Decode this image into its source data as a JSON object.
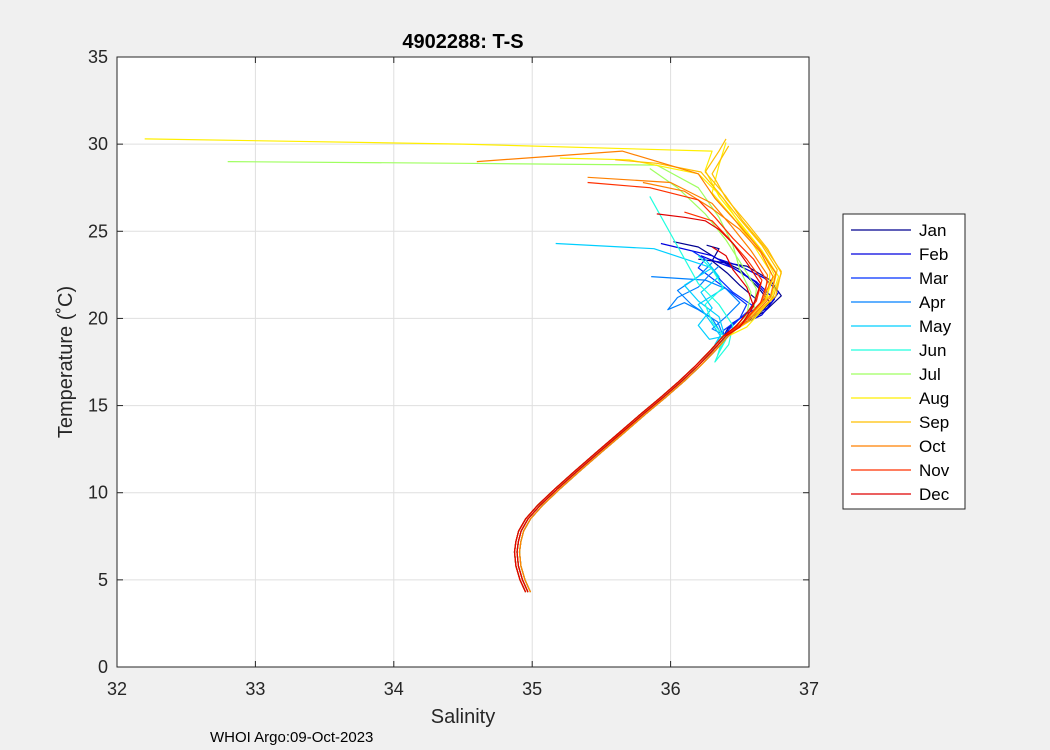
{
  "colors": {
    "figure_bg": "#f0f0f0",
    "axes_bg": "#ffffff",
    "grid": "#dfdfdf",
    "axis": "#262626"
  },
  "chart_data": {
    "type": "line",
    "title": "4902288:  T-S",
    "xlabel": "Salinity",
    "ylabel": "Temperature (˚C)",
    "xlim": [
      32,
      37
    ],
    "ylim": [
      0,
      35
    ],
    "xticks": [
      32,
      33,
      34,
      35,
      36,
      37
    ],
    "yticks": [
      0,
      5,
      10,
      15,
      20,
      25,
      30,
      35
    ],
    "grid": true,
    "legend_position": "outside-right",
    "footer": "WHOI Argo:09-Oct-2023",
    "base_curve": {
      "salinity": [
        34.97,
        34.93,
        34.9,
        34.89,
        34.9,
        34.92,
        34.97,
        35.06,
        35.18,
        35.32,
        35.48,
        35.64,
        35.8,
        35.95,
        36.08,
        36.2,
        36.31,
        36.4
      ],
      "temperature": [
        4.3,
        5.0,
        5.8,
        6.6,
        7.2,
        7.8,
        8.5,
        9.3,
        10.2,
        11.2,
        12.3,
        13.4,
        14.5,
        15.5,
        16.4,
        17.3,
        18.2,
        19.0
      ]
    },
    "series": [
      {
        "name": "Jan",
        "color": "#00008f",
        "profiles": [
          {
            "salinity": [
              36.42,
              36.55,
              36.62,
              36.5,
              36.41,
              36.3,
              36.35,
              36.26
            ],
            "temperature": [
              19.5,
              20.3,
              21.1,
              21.9,
              22.6,
              23.3,
              24.0,
              24.2
            ]
          },
          {
            "salinity": [
              36.46,
              36.62,
              36.72,
              36.63,
              36.5,
              36.32,
              36.2,
              36.02
            ],
            "temperature": [
              19.4,
              20.1,
              20.9,
              21.8,
              22.8,
              23.5,
              24.1,
              24.4
            ]
          },
          {
            "salinity": [
              36.5,
              36.68,
              36.8,
              36.72,
              36.55,
              36.3,
              36.2
            ],
            "temperature": [
              19.6,
              20.4,
              21.3,
              22.2,
              23.0,
              23.3,
              23.4
            ]
          }
        ]
      },
      {
        "name": "Feb",
        "color": "#0000df",
        "profiles": [
          {
            "salinity": [
              36.48,
              36.66,
              36.75,
              36.62,
              36.45,
              36.28,
              36.22
            ],
            "temperature": [
              19.5,
              20.2,
              21.1,
              22.1,
              22.9,
              23.4,
              23.6
            ]
          },
          {
            "salinity": [
              36.44,
              36.6,
              36.7,
              36.61,
              36.45,
              36.3,
              35.93
            ],
            "temperature": [
              19.7,
              20.5,
              21.3,
              22.1,
              22.9,
              23.6,
              24.3
            ]
          },
          {
            "salinity": [
              36.52,
              36.7,
              36.78,
              36.68,
              36.5,
              36.35
            ],
            "temperature": [
              19.8,
              20.6,
              21.5,
              22.3,
              23.0,
              23.4
            ]
          }
        ]
      },
      {
        "name": "Mar",
        "color": "#0030ff",
        "profiles": [
          {
            "salinity": [
              36.38,
              36.5,
              36.55,
              36.42,
              36.3,
              36.2,
              36.25,
              36.15
            ],
            "temperature": [
              19.3,
              20.0,
              20.8,
              21.6,
              22.3,
              22.9,
              23.4,
              23.9
            ]
          },
          {
            "salinity": [
              36.4,
              36.5,
              36.6,
              36.45,
              36.36,
              36.3
            ],
            "temperature": [
              19.2,
              20.0,
              20.7,
              21.5,
              22.2,
              22.9
            ]
          }
        ]
      },
      {
        "name": "Apr",
        "color": "#0080ff",
        "profiles": [
          {
            "salinity": [
              36.38,
              36.34,
              36.2,
              36.1,
              35.98,
              36.05,
              36.2,
              36.28,
              36.35
            ],
            "temperature": [
              19.0,
              19.8,
              20.5,
              20.9,
              20.5,
              21.2,
              21.8,
              22.5,
              23.0
            ]
          },
          {
            "salinity": [
              36.3,
              36.4,
              36.5,
              36.4,
              36.25,
              35.86
            ],
            "temperature": [
              19.4,
              20.1,
              20.9,
              21.7,
              22.2,
              22.4
            ]
          },
          {
            "salinity": [
              36.36,
              36.3,
              36.15,
              36.05,
              36.2,
              36.3
            ],
            "temperature": [
              19.2,
              20.0,
              20.8,
              21.6,
              22.4,
              23.2
            ]
          }
        ]
      },
      {
        "name": "May",
        "color": "#00cfff",
        "profiles": [
          {
            "salinity": [
              36.32,
              36.38,
              36.35,
              36.2,
              36.1,
              36.3,
              35.88,
              35.17
            ],
            "temperature": [
              18.5,
              19.3,
              20.1,
              21.0,
              21.9,
              22.9,
              24.0,
              24.3
            ]
          },
          {
            "salinity": [
              36.28,
              36.2,
              36.3,
              36.22,
              36.35,
              36.25
            ],
            "temperature": [
              18.8,
              19.6,
              20.6,
              21.5,
              22.4,
              23.4
            ]
          },
          {
            "salinity": [
              36.3,
              36.36,
              36.28,
              36.2,
              36.38,
              36.32
            ],
            "temperature": [
              18.2,
              19.0,
              19.9,
              20.8,
              21.7,
              22.7
            ]
          }
        ]
      },
      {
        "name": "Jun",
        "color": "#20ffdf",
        "profiles": [
          {
            "salinity": [
              36.34,
              36.4,
              36.3,
              36.25,
              36.38,
              36.3,
              36.2
            ],
            "temperature": [
              17.9,
              18.8,
              19.8,
              20.8,
              21.8,
              22.8,
              23.6
            ]
          },
          {
            "salinity": [
              36.32,
              36.42,
              36.45,
              36.35,
              36.2,
              35.85
            ],
            "temperature": [
              17.5,
              18.5,
              19.6,
              20.8,
              22.0,
              27.0
            ]
          }
        ]
      },
      {
        "name": "Jul",
        "color": "#9fff60",
        "profiles": [
          {
            "salinity": [
              36.4,
              36.55,
              36.58,
              36.5,
              36.45,
              36.35,
              36.2,
              35.9,
              34.5,
              32.8
            ],
            "temperature": [
              19.0,
              20.2,
              21.5,
              22.8,
              24.2,
              25.8,
              27.5,
              28.8,
              28.9,
              29.0
            ]
          },
          {
            "salinity": [
              36.45,
              36.6,
              36.62,
              36.52,
              36.4,
              36.25,
              36.05,
              35.85
            ],
            "temperature": [
              19.2,
              20.4,
              21.7,
              23.0,
              24.5,
              26.0,
              27.5,
              28.6
            ]
          }
        ]
      },
      {
        "name": "Aug",
        "color": "#ffef00",
        "profiles": [
          {
            "salinity": [
              36.5,
              36.68,
              36.75,
              36.65,
              36.5,
              36.35,
              36.25,
              36.3,
              34.5,
              32.2
            ],
            "temperature": [
              19.6,
              21.0,
              22.5,
              24.0,
              25.5,
              27.0,
              28.5,
              29.6,
              30.0,
              30.3
            ]
          },
          {
            "salinity": [
              36.52,
              36.7,
              36.72,
              36.6,
              36.45,
              36.3,
              36.35,
              36.4
            ],
            "temperature": [
              19.8,
              21.2,
              22.7,
              24.2,
              25.8,
              27.2,
              28.8,
              30.1
            ]
          },
          {
            "salinity": [
              36.55,
              36.72,
              36.78,
              36.66,
              36.5,
              36.38,
              36.2,
              35.7,
              35.2
            ],
            "temperature": [
              19.5,
              21.0,
              22.4,
              23.9,
              25.4,
              26.9,
              28.3,
              29.1,
              29.2
            ]
          }
        ]
      },
      {
        "name": "Sep",
        "color": "#ffbf00",
        "profiles": [
          {
            "salinity": [
              36.55,
              36.74,
              36.8,
              36.7,
              36.55,
              36.4,
              36.3,
              36.42
            ],
            "temperature": [
              19.8,
              21.2,
              22.6,
              24.0,
              25.5,
              26.9,
              28.3,
              29.9
            ]
          },
          {
            "salinity": [
              36.58,
              36.76,
              36.8,
              36.68,
              36.52,
              36.4,
              36.25,
              36.35,
              36.4
            ],
            "temperature": [
              19.9,
              21.3,
              22.7,
              24.1,
              25.6,
              27.0,
              28.4,
              29.6,
              30.3
            ]
          },
          {
            "salinity": [
              36.56,
              36.73,
              36.77,
              36.66,
              36.5,
              36.36,
              36.22,
              35.9,
              35.6
            ],
            "temperature": [
              20.0,
              21.4,
              22.8,
              24.2,
              25.7,
              27.1,
              28.4,
              28.9,
              29.1
            ]
          }
        ]
      },
      {
        "name": "Oct",
        "color": "#ff8000",
        "profiles": [
          {
            "salinity": [
              36.55,
              36.72,
              36.76,
              36.64,
              36.48,
              36.32,
              36.2,
              35.65,
              34.6
            ],
            "temperature": [
              19.8,
              21.2,
              22.6,
              24.0,
              25.5,
              26.9,
              28.3,
              29.6,
              29.0
            ]
          },
          {
            "salinity": [
              36.52,
              36.68,
              36.7,
              36.58,
              36.44,
              36.3,
              36.0,
              35.4
            ],
            "temperature": [
              19.8,
              21.1,
              22.5,
              23.9,
              25.3,
              26.6,
              27.8,
              28.1
            ]
          },
          {
            "salinity": [
              36.5,
              36.66,
              36.74,
              36.65,
              36.5,
              36.3,
              36.1,
              35.8
            ],
            "temperature": [
              19.6,
              21.0,
              22.4,
              23.8,
              25.1,
              26.3,
              27.3,
              27.8
            ]
          }
        ]
      },
      {
        "name": "Nov",
        "color": "#ff3000",
        "profiles": [
          {
            "salinity": [
              36.52,
              36.65,
              36.7,
              36.6,
              36.45,
              36.32,
              36.2,
              35.85,
              35.4
            ],
            "temperature": [
              19.7,
              20.9,
              22.1,
              23.4,
              24.6,
              25.8,
              26.8,
              27.5,
              27.8
            ]
          },
          {
            "salinity": [
              36.5,
              36.62,
              36.66,
              36.55,
              36.42,
              36.3,
              36.1
            ],
            "temperature": [
              19.8,
              21.0,
              22.2,
              23.4,
              24.6,
              25.6,
              26.1
            ]
          }
        ]
      },
      {
        "name": "Dec",
        "color": "#df0000",
        "profiles": [
          {
            "salinity": [
              36.48,
              36.6,
              36.65,
              36.55,
              36.45,
              36.35,
              36.25,
              36.1,
              35.9
            ],
            "temperature": [
              19.6,
              20.8,
              22.0,
              23.2,
              24.3,
              25.1,
              25.6,
              25.8,
              26.0
            ]
          },
          {
            "salinity": [
              36.5,
              36.6,
              36.55,
              36.45,
              36.4,
              36.3
            ],
            "temperature": [
              19.5,
              20.7,
              21.8,
              22.8,
              23.6,
              24.1
            ]
          }
        ]
      }
    ]
  }
}
